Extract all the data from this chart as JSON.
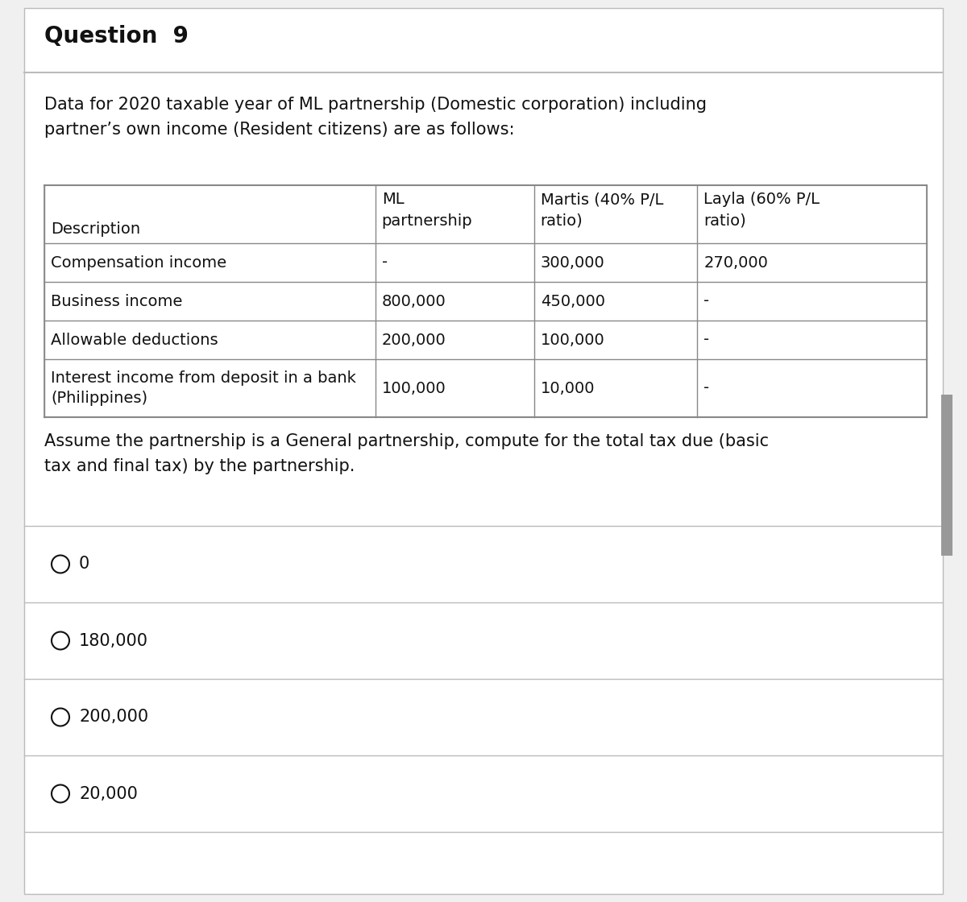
{
  "title": "Question  9",
  "intro_text": "Data for 2020 taxable year of ML partnership (Domestic corporation) including\npartner’s own income (Resident citizens) are as follows:",
  "table_headers_col0": "Description",
  "table_headers_col1_line1": "ML",
  "table_headers_col1_line2": "partnership",
  "table_headers_col2_line1": "Martis (40% P/L",
  "table_headers_col2_line2": "ratio)",
  "table_headers_col3_line1": "Layla (60% P/L",
  "table_headers_col3_line2": "ratio)",
  "table_rows": [
    [
      "Compensation income",
      "-",
      "300,000",
      "270,000"
    ],
    [
      "Business income",
      "800,000",
      "450,000",
      "-"
    ],
    [
      "Allowable deductions",
      "200,000",
      "100,000",
      "-"
    ],
    [
      "Interest income from deposit in a bank\n(Philippines)",
      "100,000",
      "10,000",
      "-"
    ]
  ],
  "question_text": "Assume the partnership is a General partnership, compute for the total tax due (basic\ntax and final tax) by the partnership.",
  "options": [
    "0",
    "180,000",
    "200,000",
    "20,000"
  ],
  "bg_color": "#f0f0f0",
  "panel_color": "#ffffff",
  "border_color": "#bbbbbb",
  "line_color": "#aaaaaa",
  "table_border_color": "#888888",
  "text_color": "#111111",
  "title_fontsize": 20,
  "body_fontsize": 15,
  "table_fontsize": 14,
  "option_fontsize": 15,
  "right_bar_color": "#999999"
}
